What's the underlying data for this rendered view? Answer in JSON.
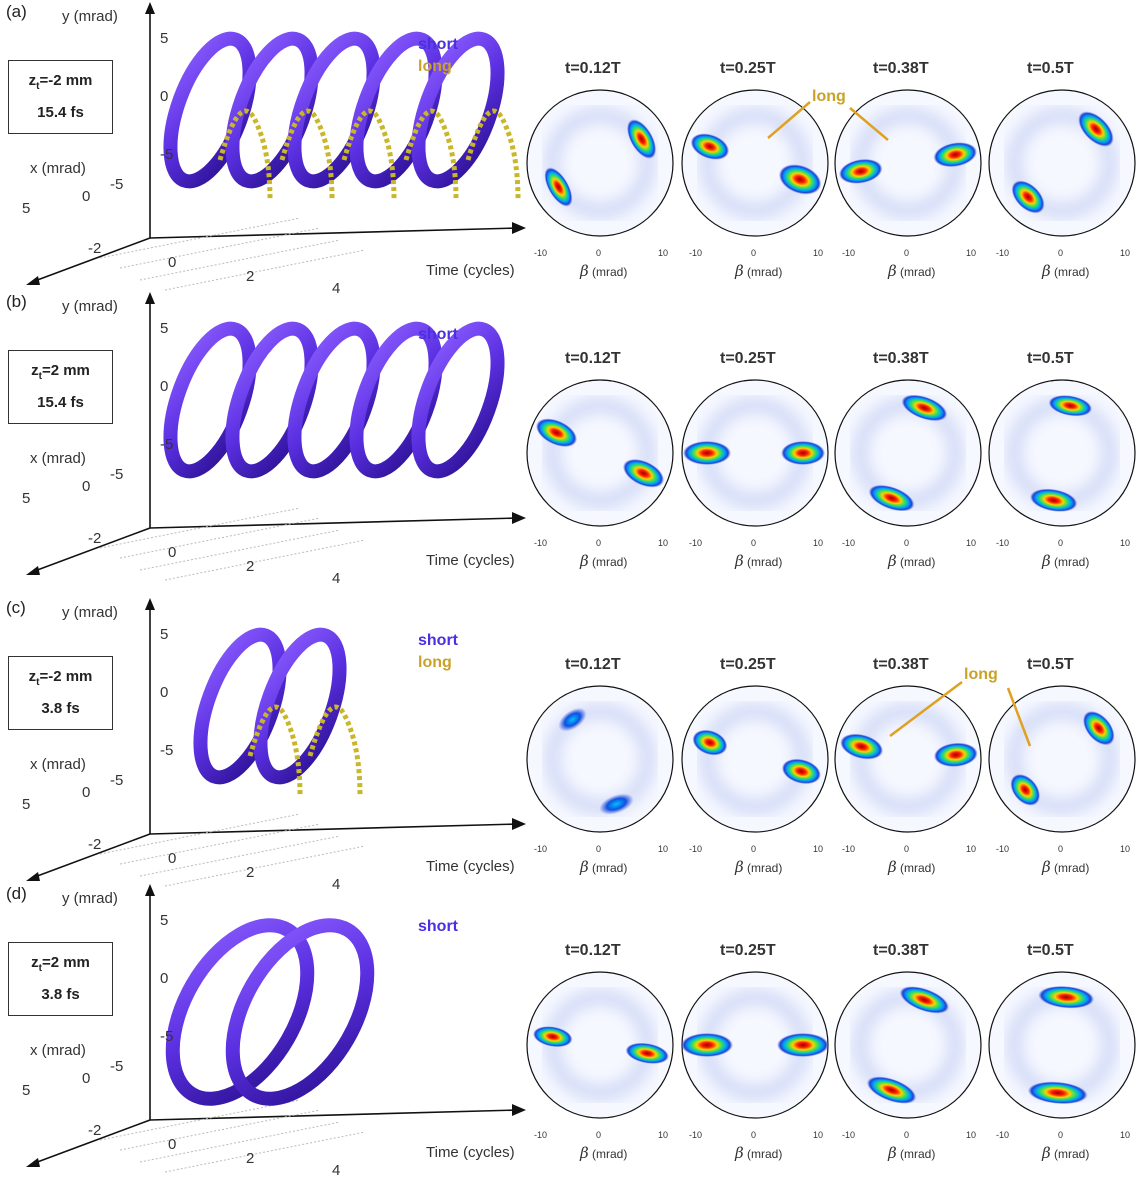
{
  "colors": {
    "short": "#4b2fe0",
    "long": "#c9a227",
    "axis": "#111111"
  },
  "common": {
    "y_label": "y (mrad)",
    "x_label": "x (mrad)",
    "time_label": "Time (cycles)",
    "y_ticks": [
      "5",
      "0",
      "-5"
    ],
    "x_ticks": [
      "-5",
      "0",
      "5"
    ],
    "t_ticks": [
      "-2",
      "0",
      "2",
      "4"
    ],
    "beta_ticks": [
      "-10",
      "0",
      "10"
    ],
    "beta_symbol": "β",
    "beta_unit": "(mrad)",
    "snapshot_times": [
      "t=0.12T",
      "t=0.25T",
      "t=0.38T",
      "t=0.5T"
    ],
    "long_annotation": "long"
  },
  "panels": [
    {
      "letter": "(a)",
      "zt": "-2 mm",
      "duration": "15.4 fs",
      "legend": [
        "short",
        "long"
      ]
    },
    {
      "letter": "(b)",
      "zt": "2 mm",
      "duration": "15.4 fs",
      "legend": [
        "short"
      ]
    },
    {
      "letter": "(c)",
      "zt": "-2 mm",
      "duration": "3.8 fs",
      "legend": [
        "short",
        "long"
      ]
    },
    {
      "letter": "(d)",
      "zt": "2 mm",
      "duration": "3.8 fs",
      "legend": [
        "short"
      ]
    }
  ]
}
